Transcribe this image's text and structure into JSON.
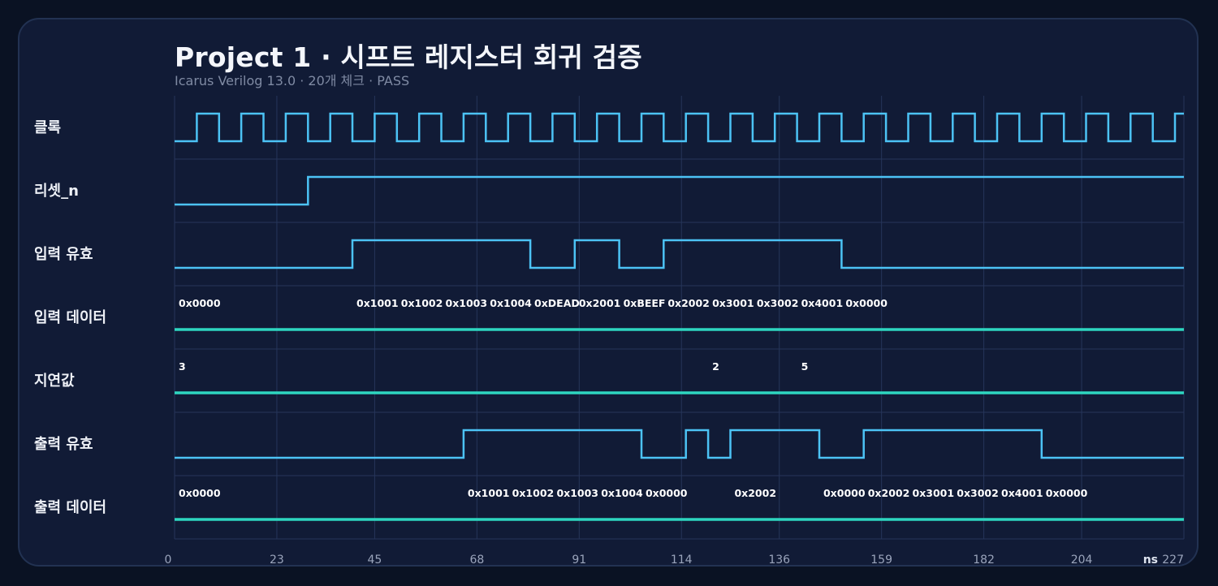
{
  "header": {
    "title": "Project 1 · 시프트 레지스터 회귀 검증",
    "subtitle": "Icarus Verilog 13.0 · 20개 체크 · PASS"
  },
  "colors": {
    "wave": "#4cc3f5",
    "bus": "#2ed6c0",
    "grid": "#26355a"
  },
  "time": {
    "unit": "ns",
    "end": 227,
    "ticks": [
      0,
      23,
      45,
      68,
      91,
      114,
      136,
      159,
      182,
      204,
      227
    ],
    "clock_period": 10,
    "clock_first_rise": 5
  },
  "signals": [
    {
      "id": "clk",
      "label": "클록",
      "type": "clock"
    },
    {
      "id": "rst_n",
      "label": "리셋_n",
      "type": "bit",
      "init": 0,
      "edges": [
        30
      ]
    },
    {
      "id": "in_valid",
      "label": "입력 유효",
      "type": "bit",
      "init": 0,
      "edges": [
        40,
        80,
        90,
        100,
        110,
        150
      ]
    },
    {
      "id": "in_data",
      "label": "입력 데이터",
      "type": "bus",
      "values": [
        {
          "t": 0,
          "v": "0x0000"
        },
        {
          "t": 40,
          "v": "0x1001"
        },
        {
          "t": 50,
          "v": "0x1002"
        },
        {
          "t": 60,
          "v": "0x1003"
        },
        {
          "t": 70,
          "v": "0x1004"
        },
        {
          "t": 80,
          "v": "0xDEAD"
        },
        {
          "t": 90,
          "v": "0x2001"
        },
        {
          "t": 100,
          "v": "0xBEEF"
        },
        {
          "t": 110,
          "v": "0x2002"
        },
        {
          "t": 120,
          "v": "0x3001"
        },
        {
          "t": 130,
          "v": "0x3002"
        },
        {
          "t": 140,
          "v": "0x4001"
        },
        {
          "t": 150,
          "v": "0x0000"
        }
      ]
    },
    {
      "id": "delay",
      "label": "지연값",
      "type": "bus",
      "values": [
        {
          "t": 0,
          "v": "3"
        },
        {
          "t": 120,
          "v": "2"
        },
        {
          "t": 140,
          "v": "5"
        }
      ]
    },
    {
      "id": "out_valid",
      "label": "출력 유효",
      "type": "bit",
      "init": 0,
      "edges": [
        65,
        105,
        115,
        120,
        125,
        145,
        155,
        195
      ]
    },
    {
      "id": "out_data",
      "label": "출력 데이터",
      "type": "bus",
      "values": [
        {
          "t": 0,
          "v": "0x0000"
        },
        {
          "t": 65,
          "v": "0x1001"
        },
        {
          "t": 75,
          "v": "0x1002"
        },
        {
          "t": 85,
          "v": "0x1003"
        },
        {
          "t": 95,
          "v": "0x1004"
        },
        {
          "t": 105,
          "v": "0x0000"
        },
        {
          "t": 125,
          "v": "0x2002"
        },
        {
          "t": 145,
          "v": "0x0000"
        },
        {
          "t": 155,
          "v": "0x2002"
        },
        {
          "t": 165,
          "v": "0x3001"
        },
        {
          "t": 175,
          "v": "0x3002"
        },
        {
          "t": 185,
          "v": "0x4001"
        },
        {
          "t": 195,
          "v": "0x0000"
        }
      ]
    }
  ]
}
